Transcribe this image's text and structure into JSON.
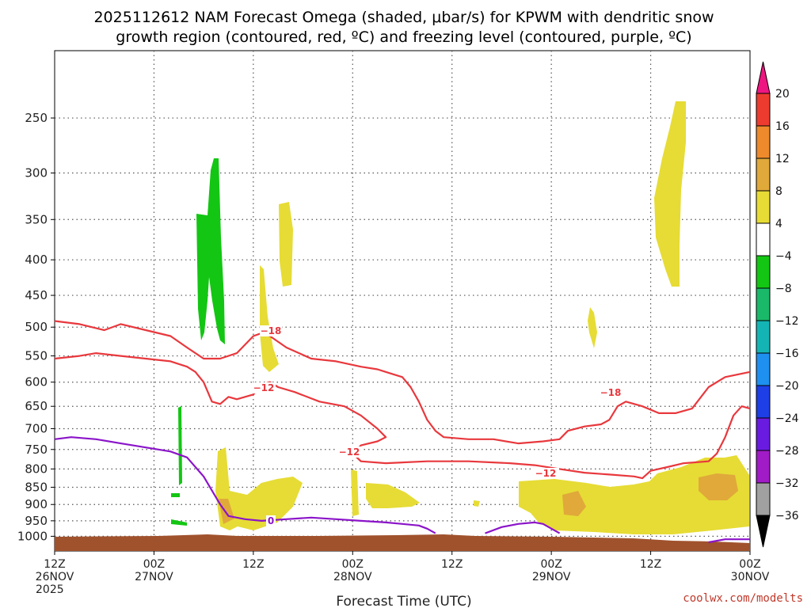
{
  "chart_data": {
    "type": "heatmap",
    "title_line1": "2025112612 NAM Forecast Omega (shaded, μbar/s) for KPWM with dendritic snow",
    "title_line2": "growth region (contoured, red, ºC) and freezing level (contoured, purple, ºC)",
    "xlabel": "Forecast Time (UTC)",
    "ylabel": "",
    "x_range_hours": [
      0,
      84
    ],
    "y_range_hpa": [
      1050,
      200
    ],
    "y_scale": "log",
    "yticks": [
      250,
      300,
      350,
      400,
      450,
      500,
      550,
      600,
      650,
      700,
      750,
      800,
      850,
      900,
      950,
      1000
    ],
    "xticks": [
      {
        "h": 0,
        "line1": "12Z",
        "line2": "26NOV",
        "line3": "2025"
      },
      {
        "h": 12,
        "line1": "00Z",
        "line2": "27NOV",
        "line3": ""
      },
      {
        "h": 24,
        "line1": "12Z",
        "line2": "",
        "line3": ""
      },
      {
        "h": 36,
        "line1": "00Z",
        "line2": "28NOV",
        "line3": ""
      },
      {
        "h": 48,
        "line1": "12Z",
        "line2": "",
        "line3": ""
      },
      {
        "h": 60,
        "line1": "00Z",
        "line2": "29NOV",
        "line3": ""
      },
      {
        "h": 72,
        "line1": "12Z",
        "line2": "",
        "line3": ""
      },
      {
        "h": 84,
        "line1": "00Z",
        "line2": "30NOV",
        "line3": ""
      }
    ],
    "grid": true,
    "colorbar": {
      "labels": [
        "20",
        "16",
        "12",
        "8",
        "4",
        "−4",
        "−8",
        "−12",
        "−16",
        "−20",
        "−24",
        "−28",
        "−32",
        "−36"
      ],
      "colors": [
        "#ee1680",
        "#ee3b30",
        "#ee8a2c",
        "#e0a93a",
        "#e6dc35",
        "#ffffff",
        "#13c613",
        "#1ab96a",
        "#15b4b4",
        "#1e90f0",
        "#1e3ee6",
        "#6a1be0",
        "#a11bc6",
        "#a0a0a0",
        "#000000"
      ]
    },
    "dendritic_labels": [
      "−18",
      "−12",
      "−12",
      "−12",
      "−18"
    ],
    "freezing_label": "0",
    "credit": "coolwx.com/modelts",
    "series": [
      {
        "contour": "-18",
        "color": "#e8383d",
        "points": [
          [
            0,
            490
          ],
          [
            3,
            495
          ],
          [
            6,
            505
          ],
          [
            8,
            495
          ],
          [
            11,
            505
          ],
          [
            14,
            515
          ],
          [
            16,
            535
          ],
          [
            18,
            555
          ],
          [
            20,
            555
          ],
          [
            22,
            545
          ],
          [
            24,
            515
          ],
          [
            25,
            510
          ],
          [
            26,
            515
          ],
          [
            28,
            535
          ],
          [
            31,
            555
          ],
          [
            34,
            560
          ],
          [
            37,
            570
          ],
          [
            39,
            575
          ],
          [
            40,
            580
          ],
          [
            41,
            585
          ],
          [
            42,
            590
          ],
          [
            43,
            610
          ],
          [
            44,
            640
          ],
          [
            45,
            680
          ],
          [
            46,
            705
          ],
          [
            47,
            720
          ],
          [
            50,
            725
          ],
          [
            53,
            725
          ],
          [
            56,
            735
          ],
          [
            59,
            730
          ],
          [
            61,
            725
          ],
          [
            62,
            705
          ],
          [
            64,
            695
          ],
          [
            66,
            690
          ],
          [
            67,
            680
          ],
          [
            68,
            650
          ],
          [
            69,
            640
          ],
          [
            71,
            650
          ],
          [
            73,
            665
          ],
          [
            75,
            665
          ],
          [
            77,
            655
          ],
          [
            79,
            610
          ],
          [
            81,
            590
          ],
          [
            84,
            580
          ]
        ]
      },
      {
        "contour": "-12",
        "color": "#e8383d",
        "points": [
          [
            0,
            555
          ],
          [
            3,
            550
          ],
          [
            5,
            545
          ],
          [
            8,
            550
          ],
          [
            11,
            555
          ],
          [
            14,
            560
          ],
          [
            16,
            570
          ],
          [
            17,
            580
          ],
          [
            18,
            600
          ],
          [
            19,
            640
          ],
          [
            20,
            645
          ],
          [
            21,
            630
          ],
          [
            22,
            635
          ],
          [
            24,
            625
          ],
          [
            25,
            605
          ],
          [
            26,
            600
          ],
          [
            27,
            610
          ],
          [
            29,
            620
          ],
          [
            32,
            640
          ],
          [
            35,
            650
          ],
          [
            37,
            670
          ],
          [
            39,
            700
          ],
          [
            40,
            720
          ],
          [
            39,
            730
          ],
          [
            37,
            740
          ],
          [
            36,
            760
          ],
          [
            37,
            780
          ],
          [
            40,
            785
          ],
          [
            45,
            780
          ],
          [
            50,
            780
          ],
          [
            55,
            785
          ],
          [
            58,
            790
          ],
          [
            61,
            800
          ],
          [
            64,
            810
          ],
          [
            67,
            815
          ],
          [
            70,
            820
          ],
          [
            71,
            825
          ],
          [
            72,
            805
          ],
          [
            74,
            795
          ],
          [
            76,
            785
          ],
          [
            79,
            780
          ],
          [
            80,
            760
          ],
          [
            81,
            720
          ],
          [
            82,
            670
          ],
          [
            83,
            650
          ],
          [
            84,
            655
          ]
        ]
      },
      {
        "contour": "0",
        "color": "#8b14c9",
        "points": [
          [
            0,
            725
          ],
          [
            2,
            720
          ],
          [
            5,
            725
          ],
          [
            8,
            735
          ],
          [
            11,
            745
          ],
          [
            14,
            755
          ],
          [
            16,
            770
          ],
          [
            18,
            820
          ],
          [
            20,
            900
          ],
          [
            21,
            935
          ],
          [
            23,
            945
          ],
          [
            25,
            950
          ],
          [
            28,
            945
          ],
          [
            31,
            940
          ],
          [
            34,
            945
          ],
          [
            37,
            950
          ],
          [
            40,
            955
          ],
          [
            42,
            960
          ],
          [
            44,
            965
          ],
          [
            45,
            975
          ],
          [
            46,
            990
          ]
        ]
      },
      {
        "contour": "0b",
        "color": "#8b14c9",
        "points": [
          [
            52,
            990
          ],
          [
            54,
            970
          ],
          [
            56,
            960
          ],
          [
            58,
            955
          ],
          [
            59,
            960
          ],
          [
            61,
            990
          ]
        ]
      },
      {
        "contour": "0c",
        "color": "#8b14c9",
        "points": [
          [
            79,
            1020
          ],
          [
            81,
            1010
          ],
          [
            84,
            1010
          ]
        ]
      }
    ]
  }
}
